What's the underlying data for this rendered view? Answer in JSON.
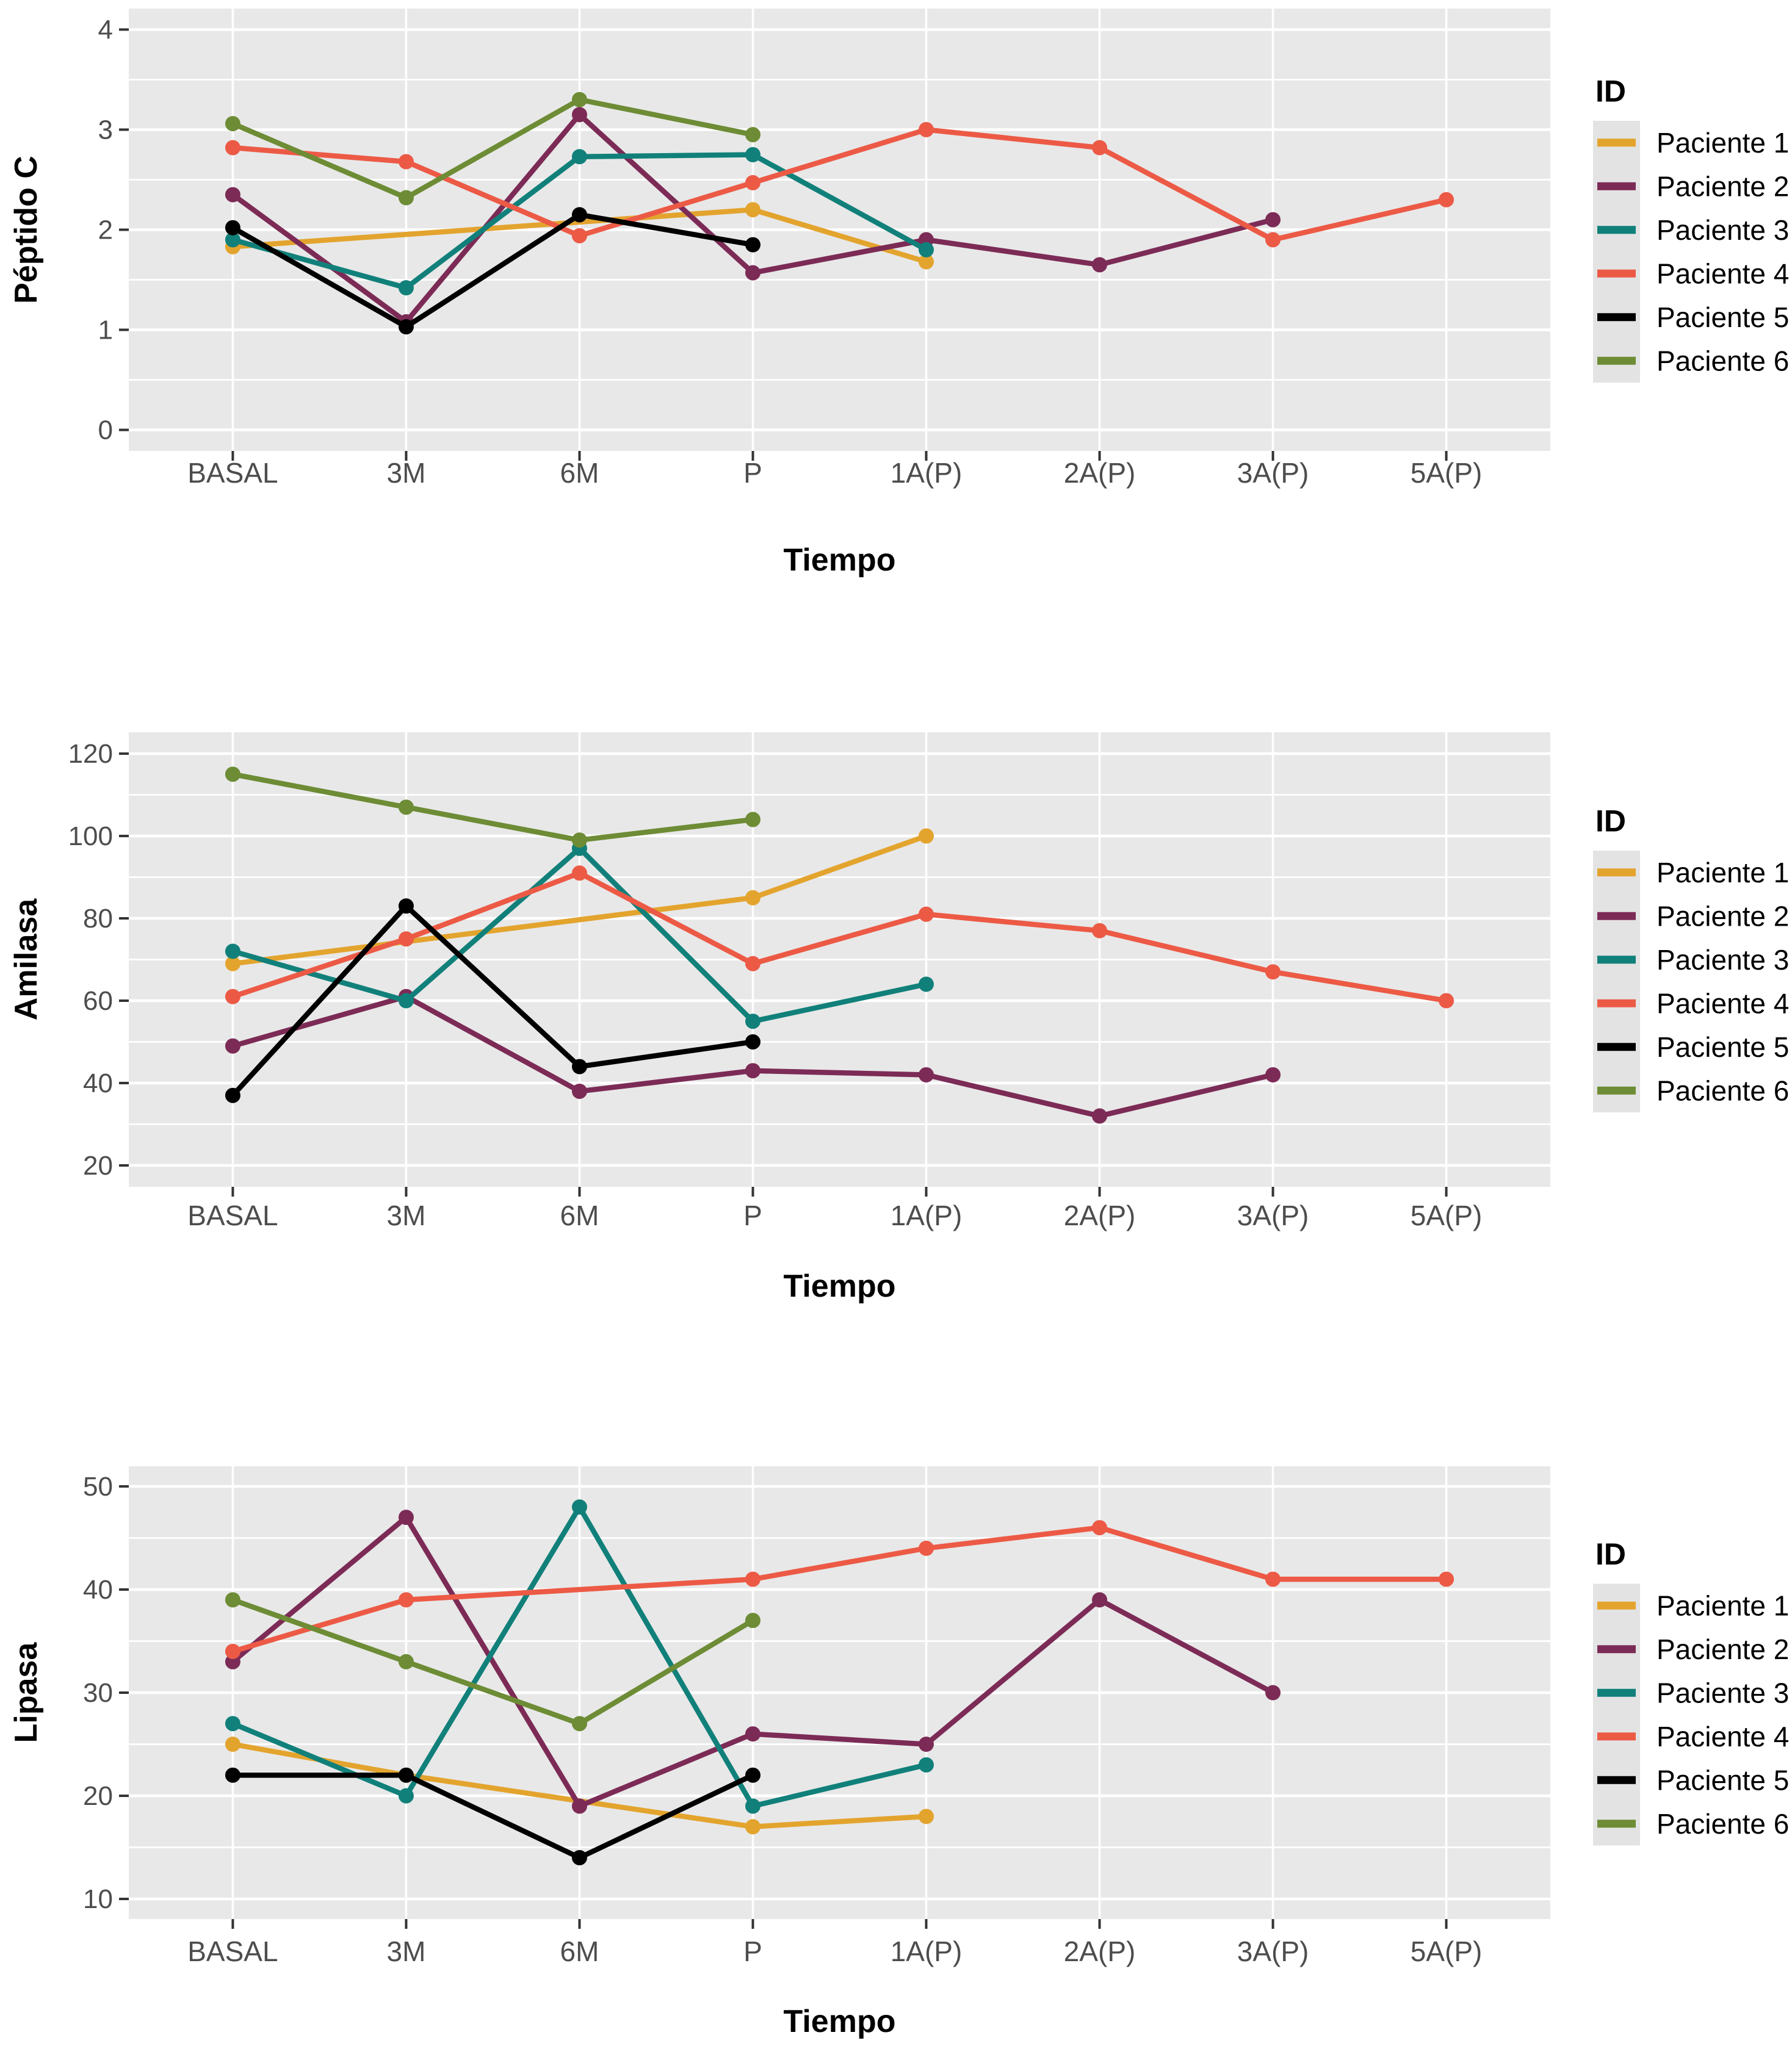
{
  "figure": {
    "kind": "three-stacked-line-charts",
    "background": "#ffffff",
    "panel_background": "#e8e8e8",
    "gridline_color": "#ffffff",
    "tick_color": "#333333",
    "tick_label_color": "#4d4d4d",
    "axis_title_color": "#000000"
  },
  "chart_data": [
    {
      "type": "line",
      "ylabel": "Péptido C",
      "xlabel": "Tiempo",
      "categories": [
        "BASAL",
        "3M",
        "6M",
        "P",
        "1A(P)",
        "2A(P)",
        "3A(P)",
        "5A(P)"
      ],
      "yticks": [
        0,
        1,
        2,
        3,
        4
      ],
      "ylim": [
        -0.21,
        4.21
      ],
      "grid": true,
      "legend": {
        "title": "ID",
        "position": "right"
      },
      "series": [
        {
          "name": "Paciente 1",
          "color": "#E3A42E",
          "values": [
            1.83,
            null,
            null,
            2.2,
            1.68,
            null,
            null,
            null
          ]
        },
        {
          "name": "Paciente 2",
          "color": "#7C2B56",
          "values": [
            2.35,
            1.08,
            3.15,
            1.57,
            1.9,
            1.65,
            2.1,
            null
          ]
        },
        {
          "name": "Paciente 3",
          "color": "#11807A",
          "values": [
            1.9,
            1.42,
            2.73,
            2.75,
            1.8,
            null,
            null,
            null
          ]
        },
        {
          "name": "Paciente 4",
          "color": "#EC5A46",
          "values": [
            2.82,
            2.68,
            1.94,
            2.47,
            3.0,
            2.82,
            1.9,
            2.3
          ]
        },
        {
          "name": "Paciente 5",
          "color": "#000000",
          "values": [
            2.02,
            1.03,
            2.15,
            1.85,
            null,
            null,
            null,
            null
          ]
        },
        {
          "name": "Paciente 6",
          "color": "#6D8C35",
          "values": [
            3.06,
            2.32,
            3.3,
            2.95,
            null,
            null,
            null,
            null
          ]
        }
      ]
    },
    {
      "type": "line",
      "ylabel": "Amilasa",
      "xlabel": "Tiempo",
      "categories": [
        "BASAL",
        "3M",
        "6M",
        "P",
        "1A(P)",
        "2A(P)",
        "3A(P)",
        "5A(P)"
      ],
      "yticks": [
        20,
        40,
        60,
        80,
        100,
        120
      ],
      "ylim": [
        14.8,
        125.2
      ],
      "grid": true,
      "legend": {
        "title": "ID",
        "position": "right"
      },
      "series": [
        {
          "name": "Paciente 1",
          "color": "#E3A42E",
          "values": [
            69,
            null,
            null,
            85,
            100,
            null,
            null,
            null
          ]
        },
        {
          "name": "Paciente 2",
          "color": "#7C2B56",
          "values": [
            49,
            61,
            38,
            43,
            42,
            32,
            42,
            null
          ]
        },
        {
          "name": "Paciente 3",
          "color": "#11807A",
          "values": [
            72,
            60,
            97,
            55,
            64,
            null,
            null,
            null
          ]
        },
        {
          "name": "Paciente 4",
          "color": "#EC5A46",
          "values": [
            61,
            75,
            91,
            69,
            81,
            77,
            67,
            60
          ]
        },
        {
          "name": "Paciente 5",
          "color": "#000000",
          "values": [
            37,
            83,
            44,
            50,
            null,
            null,
            null,
            null
          ]
        },
        {
          "name": "Paciente 6",
          "color": "#6D8C35",
          "values": [
            115,
            107,
            99,
            104,
            null,
            null,
            null,
            null
          ]
        }
      ]
    },
    {
      "type": "line",
      "ylabel": "Lipasa",
      "xlabel": "Tiempo",
      "categories": [
        "BASAL",
        "3M",
        "6M",
        "P",
        "1A(P)",
        "2A(P)",
        "3A(P)",
        "5A(P)"
      ],
      "yticks": [
        10,
        20,
        30,
        40,
        50
      ],
      "ylim": [
        8.05,
        51.95
      ],
      "grid": true,
      "legend": {
        "title": "ID",
        "position": "right"
      },
      "series": [
        {
          "name": "Paciente 1",
          "color": "#E3A42E",
          "values": [
            25,
            22,
            null,
            17,
            18,
            null,
            null,
            null
          ]
        },
        {
          "name": "Paciente 2",
          "color": "#7C2B56",
          "values": [
            33,
            47,
            19,
            26,
            25,
            39,
            30,
            null
          ]
        },
        {
          "name": "Paciente 3",
          "color": "#11807A",
          "values": [
            27,
            20,
            48,
            19,
            23,
            null,
            null,
            null
          ]
        },
        {
          "name": "Paciente 4",
          "color": "#EC5A46",
          "values": [
            34,
            39,
            null,
            41,
            44,
            46,
            41,
            41
          ]
        },
        {
          "name": "Paciente 5",
          "color": "#000000",
          "values": [
            22,
            22,
            14,
            22,
            null,
            null,
            null,
            null
          ]
        },
        {
          "name": "Paciente 6",
          "color": "#6D8C35",
          "values": [
            39,
            33,
            27,
            37,
            null,
            null,
            null,
            null
          ]
        }
      ]
    }
  ]
}
